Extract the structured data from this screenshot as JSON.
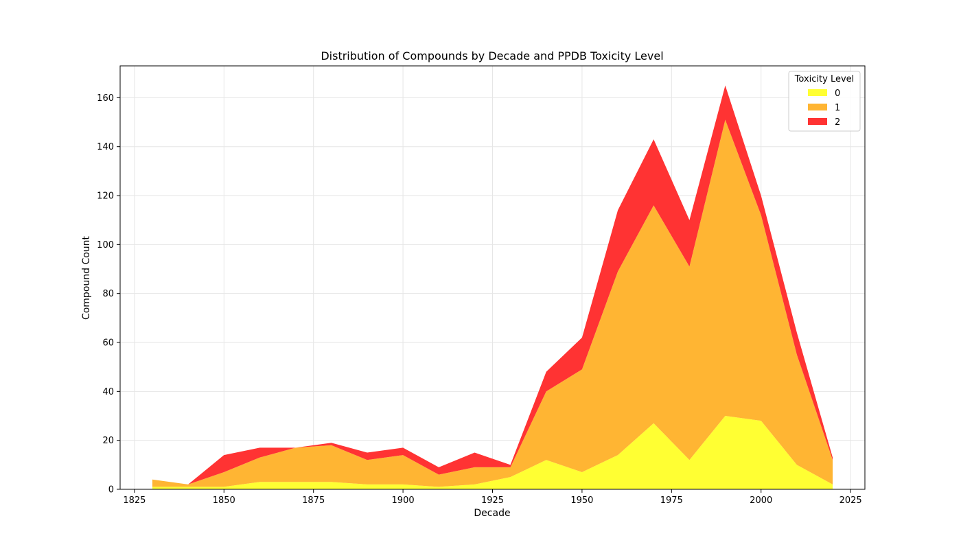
{
  "chart_data": {
    "type": "area",
    "stacked": true,
    "title": "Distribution of Compounds by Decade and PPDB Toxicity Level",
    "xlabel": "Decade",
    "ylabel": "Compound Count",
    "xlim": [
      1821,
      2029
    ],
    "ylim": [
      0,
      173
    ],
    "xticks": [
      1825,
      1850,
      1875,
      1900,
      1925,
      1950,
      1975,
      2000,
      2025
    ],
    "yticks": [
      0,
      20,
      40,
      60,
      80,
      100,
      120,
      140,
      160
    ],
    "grid": true,
    "legend": {
      "title": "Toxicity Level",
      "placement": "top-right"
    },
    "x": [
      1830,
      1840,
      1850,
      1860,
      1870,
      1880,
      1890,
      1900,
      1910,
      1920,
      1930,
      1940,
      1950,
      1960,
      1970,
      1980,
      1990,
      2000,
      2010,
      2020
    ],
    "series": [
      {
        "name": "0",
        "color": "#ffff33",
        "values": [
          1,
          1,
          1,
          3,
          3,
          3,
          2,
          2,
          1,
          2,
          5,
          12,
          7,
          14,
          27,
          12,
          30,
          28,
          10,
          2
        ]
      },
      {
        "name": "1",
        "color": "#ffb533",
        "values": [
          3,
          1,
          6,
          10,
          14,
          15,
          10,
          12,
          5,
          7,
          4,
          28,
          42,
          75,
          89,
          79,
          121,
          84,
          45,
          10
        ]
      },
      {
        "name": "2",
        "color": "#ff3333",
        "values": [
          0,
          0,
          7,
          4,
          0,
          1,
          3,
          3,
          3,
          6,
          1,
          8,
          13,
          25,
          27,
          19,
          14,
          8,
          9,
          1
        ]
      }
    ]
  }
}
